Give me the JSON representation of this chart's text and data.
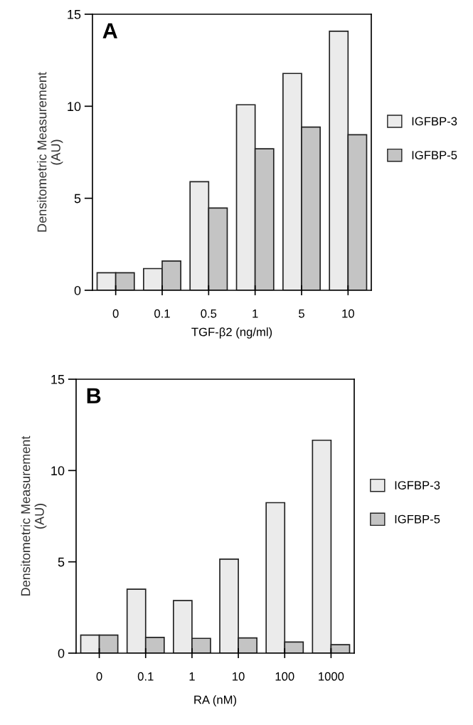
{
  "chart_data": [
    {
      "type": "bar",
      "xlabel": "TGF-β2 (ng/ml)",
      "ylabel": "Densitometric Measurement\n(AU)",
      "categories": [
        "0",
        "0.1",
        "0.5",
        "1",
        "5",
        "10"
      ],
      "ylim": [
        0,
        15
      ],
      "yticks": [
        0,
        5,
        10,
        15
      ],
      "grid": false,
      "legend": "right",
      "annotations": [
        "A"
      ],
      "series": [
        {
          "name": "IGFBP-3",
          "color": "#ebebeb",
          "values": [
            0.95,
            1.18,
            5.9,
            10.08,
            11.78,
            14.08
          ]
        },
        {
          "name": "IGFBP-5",
          "color": "#c4c4c4",
          "values": [
            0.95,
            1.59,
            4.47,
            7.69,
            8.87,
            8.45
          ]
        }
      ]
    },
    {
      "type": "bar",
      "xlabel": "RA (nM)",
      "ylabel": "Densitometric Measurement\n(AU)",
      "categories": [
        "0",
        "0.1",
        "1",
        "10",
        "100",
        "1000"
      ],
      "ylim": [
        0,
        15
      ],
      "yticks": [
        0,
        5,
        10,
        15
      ],
      "grid": false,
      "legend": "right",
      "annotations": [
        "B"
      ],
      "series": [
        {
          "name": "IGFBP-3",
          "color": "#ebebeb",
          "values": [
            0.99,
            3.5,
            2.88,
            5.15,
            8.24,
            11.66
          ]
        },
        {
          "name": "IGFBP-5",
          "color": "#c4c4c4",
          "values": [
            0.99,
            0.86,
            0.81,
            0.83,
            0.61,
            0.46
          ]
        }
      ]
    }
  ]
}
